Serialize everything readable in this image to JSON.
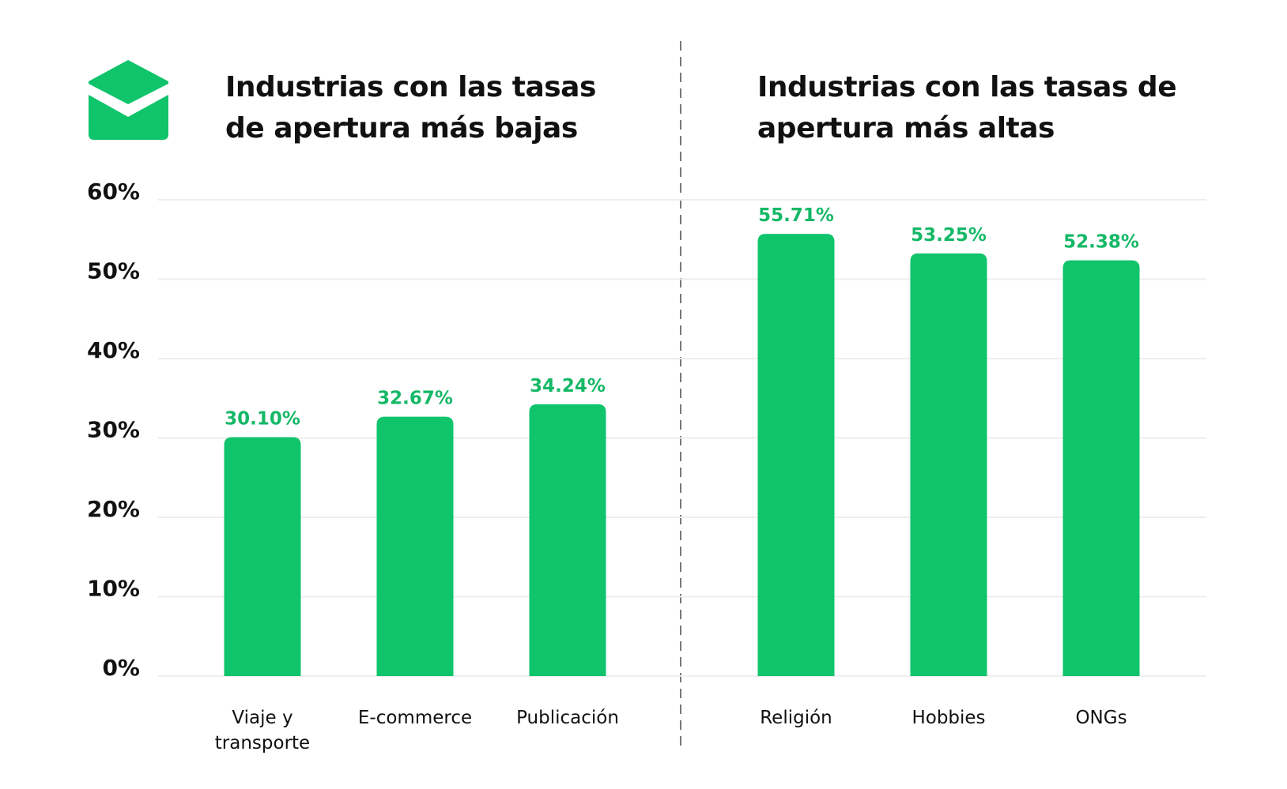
{
  "colors": {
    "bar": "#0fc46b",
    "value_label": "#14b866",
    "text": "#111111",
    "grid": "#eeeeee",
    "divider": "#777777"
  },
  "icon": "open-envelope-icon",
  "chart_data": [
    {
      "type": "bar",
      "title": "Industrias con las tasas de apertura más bajas",
      "categories": [
        "Viaje y transporte",
        "E-commerce",
        "Publicación"
      ],
      "values": [
        30.1,
        32.67,
        34.24
      ],
      "value_labels": [
        "30.10%",
        "32.67%",
        "34.24%"
      ],
      "ylim": [
        0,
        60
      ],
      "yticks": [
        "0%",
        "10%",
        "20%",
        "30%",
        "40%",
        "50%",
        "60%"
      ],
      "grid": true
    },
    {
      "type": "bar",
      "title": "Industrias con las tasas de apertura más altas",
      "categories": [
        "Religión",
        "Hobbies",
        "ONGs"
      ],
      "values": [
        55.71,
        53.25,
        52.38
      ],
      "value_labels": [
        "55.71%",
        "53.25%",
        "52.38%"
      ],
      "ylim": [
        0,
        60
      ],
      "grid": true
    }
  ]
}
